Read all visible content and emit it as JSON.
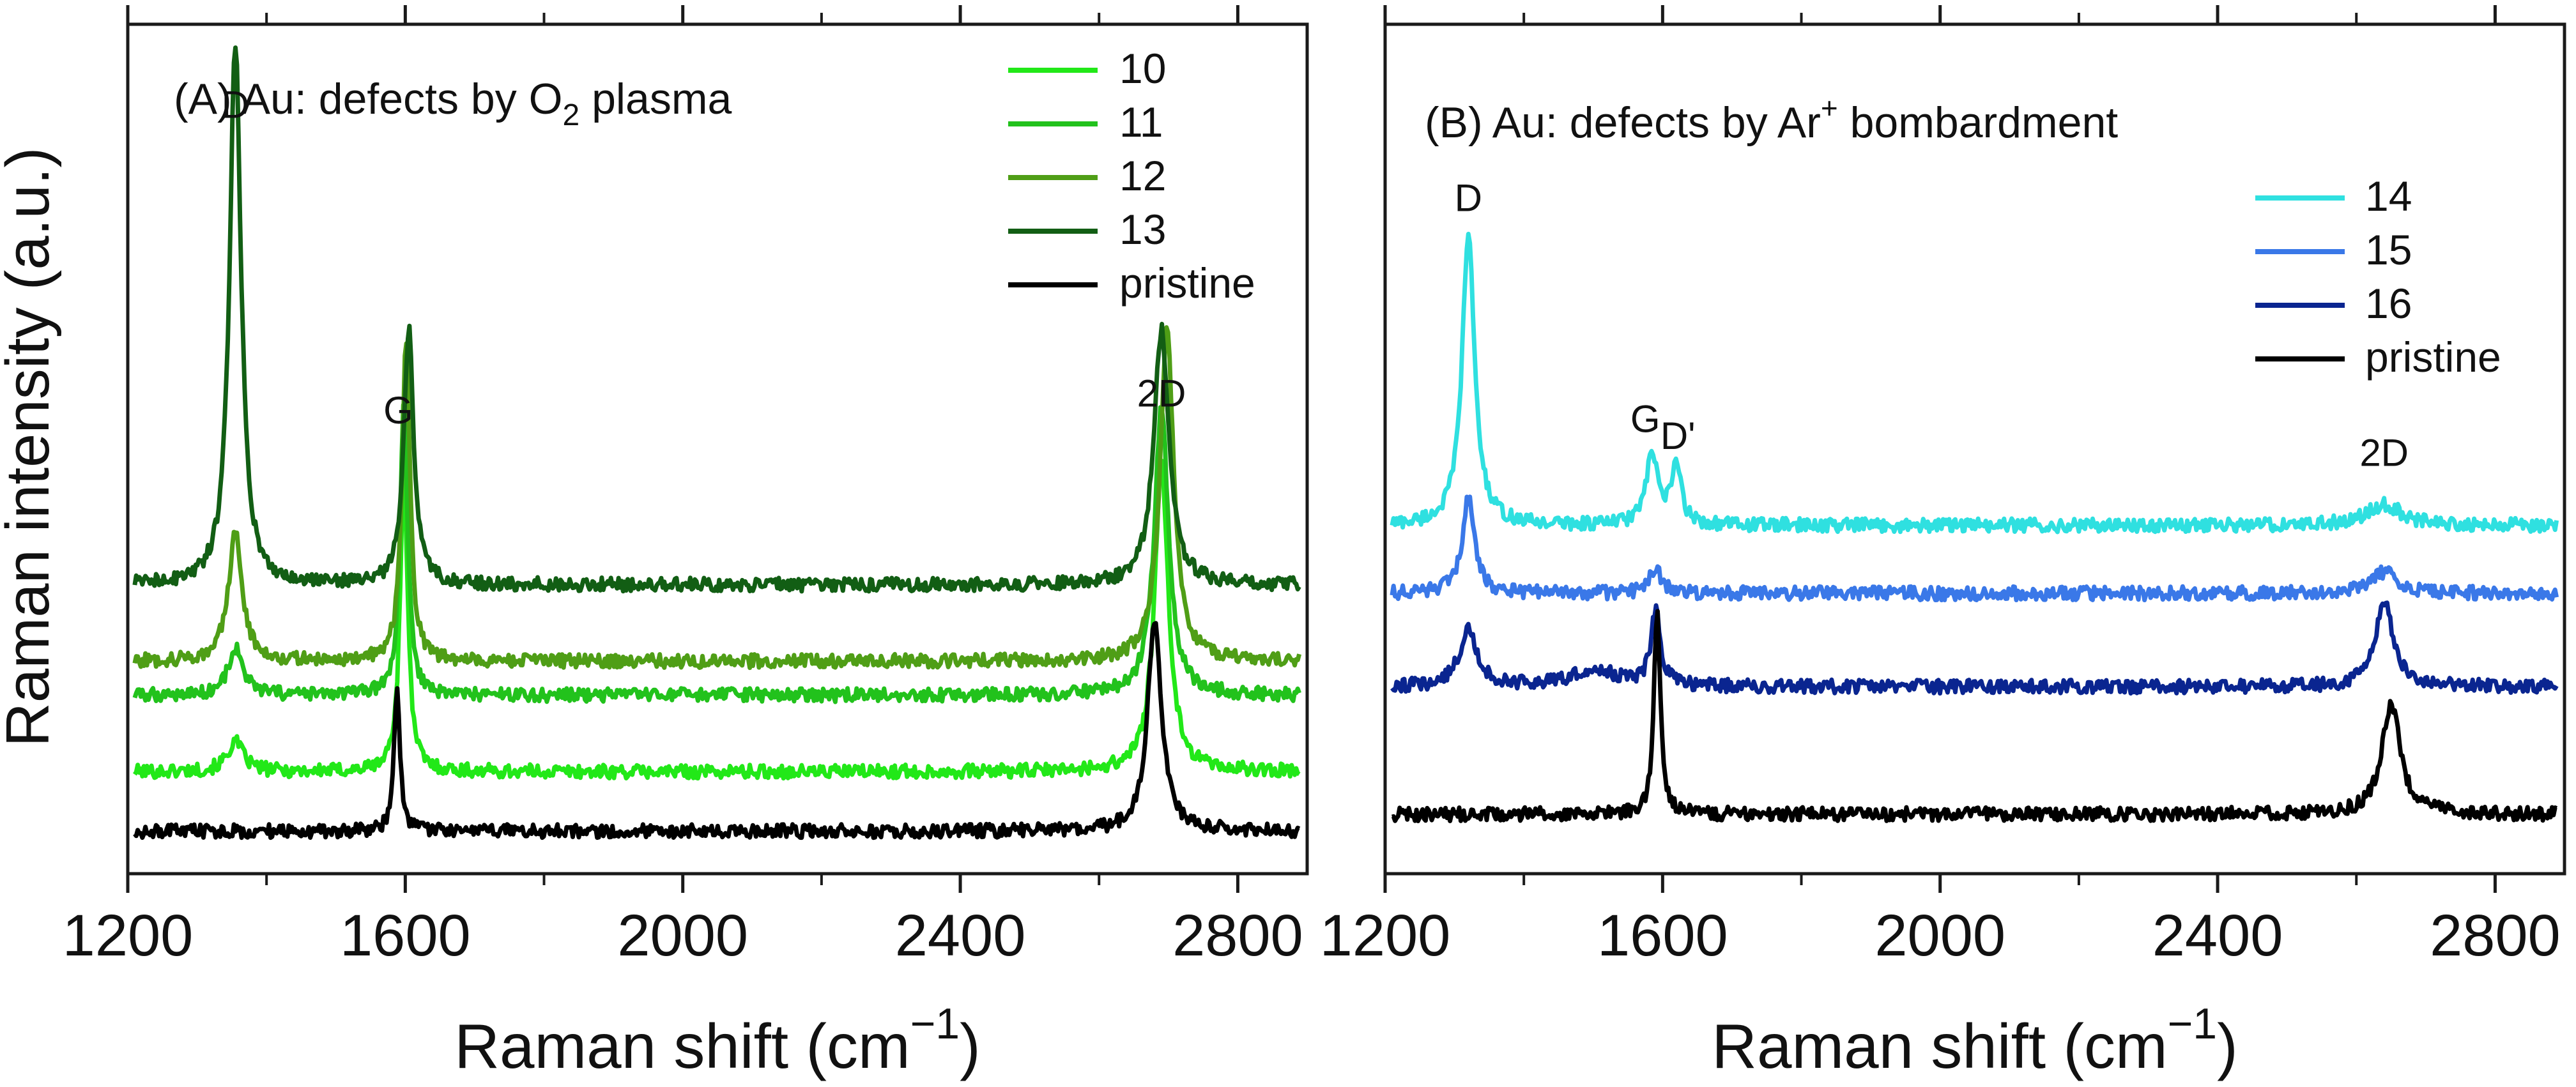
{
  "figure": {
    "ylabel": "Raman intensity (a.u.)"
  },
  "chart_data": [
    {
      "type": "line",
      "panel": "A",
      "title": "(A) Au: defects by O₂ plasma",
      "title_parts": {
        "prefix": "(A) Au: defects by O",
        "sub": "2",
        "suffix": " plasma"
      },
      "xlabel": "Raman shift (cm⁻¹)",
      "xlabel_parts": {
        "base": "Raman shift (cm",
        "sup": "−1",
        "close": ")"
      },
      "ylabel": "Raman intensity (a.u.)",
      "xlim": [
        1200,
        2900
      ],
      "ylim": [
        0,
        100
      ],
      "xticks": [
        1200,
        1600,
        2000,
        2400,
        2800
      ],
      "xtick_labels": [
        "1200",
        "1600",
        "2000",
        "2400",
        "2800"
      ],
      "minor_xticks": [
        1400,
        1800,
        2200,
        2600
      ],
      "grid": false,
      "legend_position": "top-right",
      "peaks": [
        {
          "label": "D",
          "x": 1355,
          "y": 89
        },
        {
          "label": "G",
          "x": 1590,
          "y": 53
        },
        {
          "label": "2D",
          "x": 2690,
          "y": 55
        }
      ],
      "series": [
        {
          "name": "10",
          "color": "#22e818",
          "baseline": 12,
          "peaks": [
            [
              1355,
              3.5,
              28
            ],
            [
              1598,
              36,
              13
            ],
            [
              2690,
              36,
              24
            ]
          ]
        },
        {
          "name": "11",
          "color": "#22c21c",
          "baseline": 21,
          "peaks": [
            [
              1355,
              5.5,
              26
            ],
            [
              1598,
              34,
              13
            ],
            [
              2690,
              34,
              24
            ]
          ]
        },
        {
          "name": "12",
          "color": "#4f9e16",
          "baseline": 25,
          "peaks": [
            [
              1355,
              15,
              24
            ],
            [
              1601,
              37,
              14
            ],
            [
              2698,
              39,
              24
            ]
          ]
        },
        {
          "name": "13",
          "color": "#125e14",
          "baseline": 34,
          "peaks": [
            [
              1355,
              64,
              20
            ],
            [
              1605,
              30,
              17
            ],
            [
              2690,
              30,
              26
            ]
          ]
        },
        {
          "name": "pristine",
          "color": "#000000",
          "baseline": 5,
          "peaks": [
            [
              1588,
              17,
              10
            ],
            [
              2680,
              25,
              24
            ]
          ]
        }
      ]
    },
    {
      "type": "line",
      "panel": "B",
      "title": "(B) Au: defects by Ar⁺ bombardment",
      "title_parts": {
        "prefix": "(B) Au: defects by Ar",
        "sup": "+",
        "suffix": " bombardment"
      },
      "xlabel": "Raman shift (cm⁻¹)",
      "xlabel_parts": {
        "base": "Raman shift (cm",
        "sup": "−1",
        "close": ")"
      },
      "xlim": [
        1200,
        2900
      ],
      "ylim": [
        0,
        100
      ],
      "xticks": [
        1200,
        1600,
        2000,
        2400,
        2800
      ],
      "xtick_labels": [
        "1200",
        "1600",
        "2000",
        "2400",
        "2800"
      ],
      "minor_xticks": [
        1400,
        1800,
        2200,
        2600
      ],
      "grid": false,
      "legend_position": "top-right",
      "peaks": [
        {
          "label": "D",
          "x": 1320,
          "y": 78
        },
        {
          "label": "G",
          "x": 1575,
          "y": 52
        },
        {
          "label": "D'",
          "x": 1622,
          "y": 50
        },
        {
          "label": "2D",
          "x": 2640,
          "y": 48
        }
      ],
      "series": [
        {
          "name": "14",
          "color": "#2fe0e0",
          "baseline": 41,
          "peaks": [
            [
              1320,
              34,
              22
            ],
            [
              1585,
              8,
              22
            ],
            [
              1620,
              7,
              16
            ],
            [
              2640,
              2.5,
              60
            ]
          ]
        },
        {
          "name": "15",
          "color": "#3a78e8",
          "baseline": 33,
          "peaks": [
            [
              1320,
              11,
              22
            ],
            [
              1590,
              3,
              20
            ],
            [
              2640,
              2.5,
              50
            ]
          ]
        },
        {
          "name": "16",
          "color": "#0a2590",
          "baseline": 22,
          "peaks": [
            [
              1320,
              7,
              30
            ],
            [
              1590,
              9,
              16
            ],
            [
              1500,
              2,
              80
            ],
            [
              2640,
              10,
              32
            ]
          ]
        },
        {
          "name": "pristine",
          "color": "#000000",
          "baseline": 7,
          "peaks": [
            [
              1592,
              24,
              11
            ],
            [
              2650,
              13,
              32
            ]
          ]
        }
      ]
    }
  ]
}
